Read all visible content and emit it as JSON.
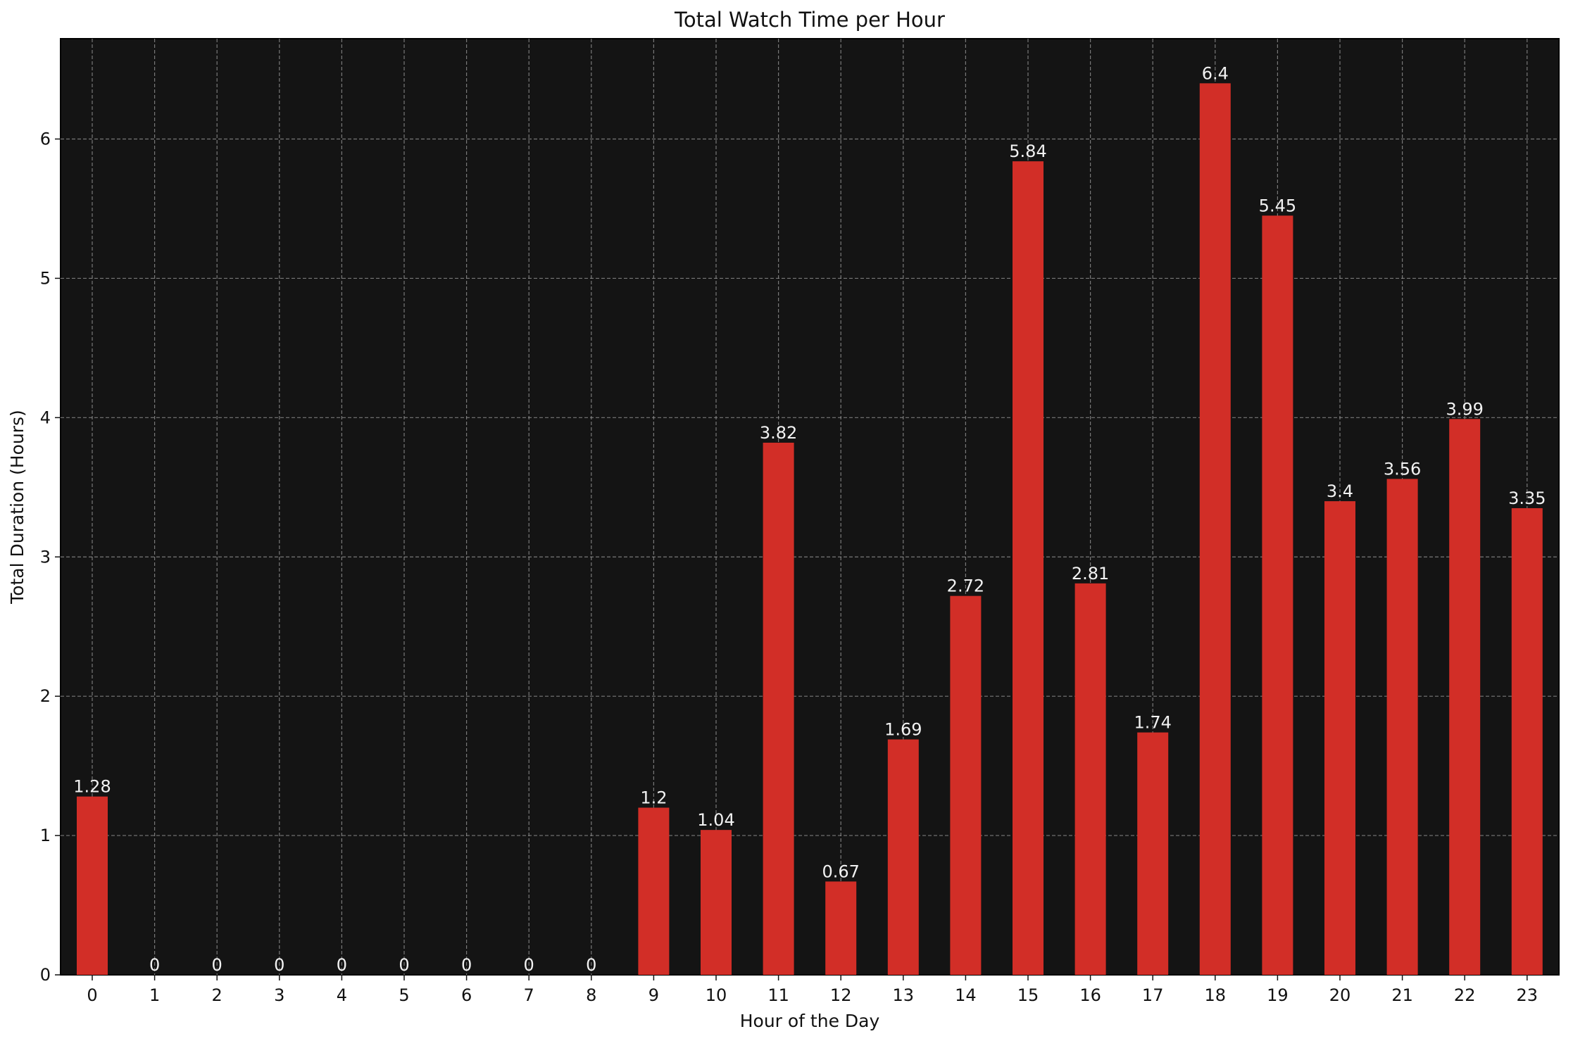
{
  "chart_data": {
    "type": "bar",
    "title": "Total Watch Time per Hour",
    "xlabel": "Hour of the Day",
    "ylabel": "Total Duration (Hours)",
    "categories": [
      "0",
      "1",
      "2",
      "3",
      "4",
      "5",
      "6",
      "7",
      "8",
      "9",
      "10",
      "11",
      "12",
      "13",
      "14",
      "15",
      "16",
      "17",
      "18",
      "19",
      "20",
      "21",
      "22",
      "23"
    ],
    "values": [
      1.28,
      0,
      0,
      0,
      0,
      0,
      0,
      0,
      0,
      1.2,
      1.04,
      3.82,
      0.67,
      1.69,
      2.72,
      5.84,
      2.81,
      1.74,
      6.4,
      5.45,
      3.4,
      3.56,
      3.99,
      3.35
    ],
    "data_labels": [
      "1.28",
      "0",
      "0",
      "0",
      "0",
      "0",
      "0",
      "0",
      "0",
      "1.2",
      "1.04",
      "3.82",
      "0.67",
      "1.69",
      "2.72",
      "5.84",
      "2.81",
      "1.74",
      "6.4",
      "5.45",
      "3.4",
      "3.56",
      "3.99",
      "3.35"
    ],
    "yticks": [
      "0",
      "1",
      "2",
      "3",
      "4",
      "5",
      "6"
    ],
    "ylim": [
      0,
      6.72
    ],
    "grid": true,
    "colors": {
      "bar": "#d22e27",
      "plot_background": "#141414",
      "grid": "#9a9a9a",
      "label": "#f2f2f2"
    }
  }
}
